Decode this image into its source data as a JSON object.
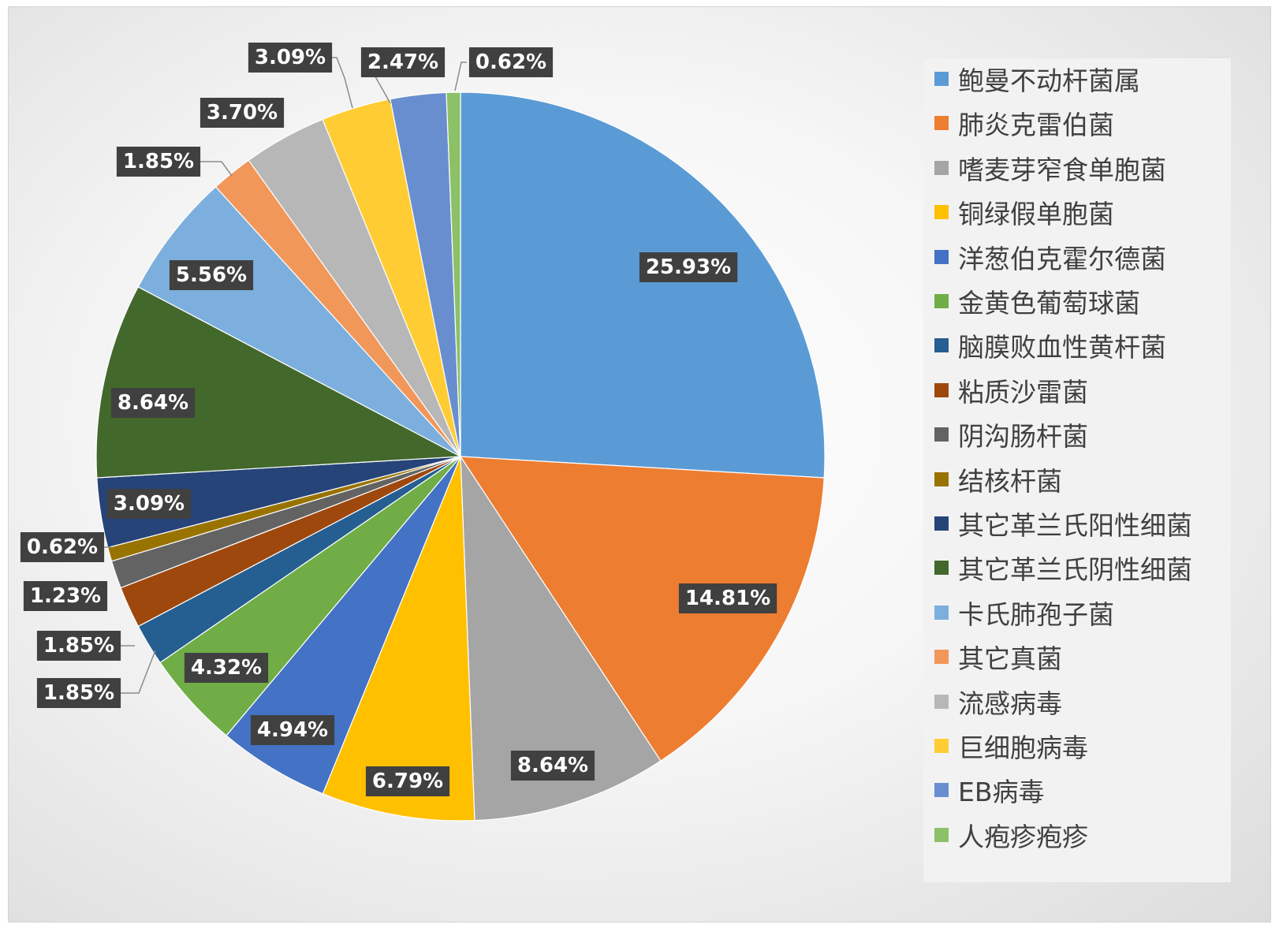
{
  "chart_data": {
    "type": "pie",
    "categories": [
      "鲍曼不动杆菌属",
      "肺炎克雷伯菌",
      "嗜麦芽窄食单胞菌",
      "铜绿假单胞菌",
      "洋葱伯克霍尔德菌",
      "金黄色葡萄球菌",
      "脑膜败血性黄杆菌",
      "粘质沙雷菌",
      "阴沟肠杆菌",
      "结核杆菌",
      "其它革兰氏阳性细菌",
      "其它革兰氏阴性细菌",
      "卡氏肺孢子菌",
      "其它真菌",
      "流感病毒",
      "巨细胞病毒",
      "EB病毒",
      "人疱疹疱疹"
    ],
    "values": [
      25.93,
      14.81,
      8.64,
      6.79,
      4.94,
      4.32,
      1.85,
      1.85,
      1.23,
      0.62,
      3.09,
      8.64,
      5.56,
      1.85,
      3.7,
      3.09,
      2.47,
      0.62
    ],
    "labels": [
      "25.93%",
      "14.81%",
      "8.64%",
      "6.79%",
      "4.94%",
      "4.32%",
      "1.85%",
      "1.85%",
      "1.23%",
      "0.62%",
      "3.09%",
      "8.64%",
      "5.56%",
      "1.85%",
      "3.70%",
      "3.09%",
      "2.47%",
      "0.62%"
    ],
    "colors": [
      "#5b9bd5",
      "#ed7d31",
      "#a5a5a5",
      "#ffc000",
      "#4472c4",
      "#70ad47",
      "#255e91",
      "#9e480e",
      "#636363",
      "#997300",
      "#264478",
      "#43682b",
      "#7cafdd",
      "#f1975a",
      "#b7b7b7",
      "#ffcd33",
      "#698ed0",
      "#8cc168"
    ],
    "legend": "right",
    "label_color": "#404040"
  }
}
